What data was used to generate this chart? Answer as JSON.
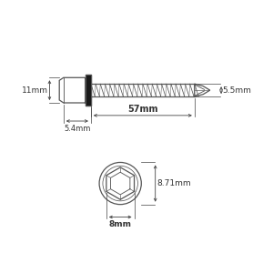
{
  "bg_color": "#ffffff",
  "line_color": "#555555",
  "dim_color": "#444444",
  "text_color": "#333333",
  "washer_color": "#1a1a1a",
  "figsize": [
    3.0,
    3.0
  ],
  "dpi": 100,
  "dims": {
    "length_mm": "57mm",
    "head_height_mm": "11mm",
    "thread_dia_mm": "5.5mm",
    "head_width_mm": "8mm",
    "head_depth_mm": "5.4mm",
    "hex_od_mm": "8.71mm"
  }
}
